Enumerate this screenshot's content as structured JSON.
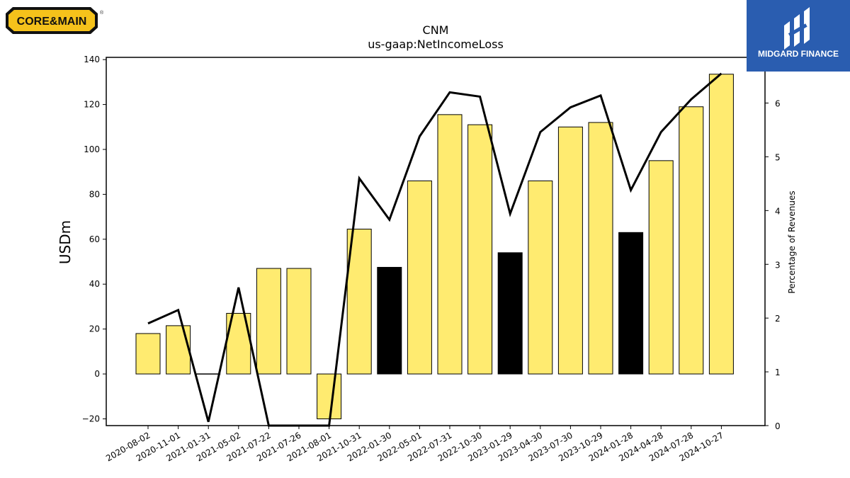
{
  "logos": {
    "left_text": "CORE&MAIN",
    "left_registered": "®",
    "right_text": "MIDGARD FINANCE"
  },
  "colors": {
    "bar_estimate": "#ffeb70",
    "bar_actual": "#000000",
    "line": "#000000",
    "logo_left_bg": "#f5c21b",
    "logo_right_bg": "#2a5db0"
  },
  "chart_data": {
    "type": "bar",
    "title": "CNM",
    "subtitle": "us-gaap:NetIncomeLoss",
    "ylabel": "USDm",
    "y2label": "Percentage of Revenues",
    "ylim": [
      -23,
      141
    ],
    "y2lim": [
      0,
      6.85
    ],
    "yticks": [
      -20,
      0,
      20,
      40,
      60,
      80,
      100,
      120,
      140
    ],
    "y2ticks": [
      0,
      1,
      2,
      3,
      4,
      5,
      6
    ],
    "grid": false,
    "categories": [
      "2020-08-02",
      "2020-11-01",
      "2021-01-31",
      "2021-05-02",
      "2021-07-22",
      "2021-07-26",
      "2021-08-01",
      "2021-10-31",
      "2022-01-30",
      "2022-05-01",
      "2022-07-31",
      "2022-10-30",
      "2023-01-29",
      "2023-04-30",
      "2023-07-30",
      "2023-10-29",
      "2024-01-28",
      "2024-04-28",
      "2024-07-28",
      "2024-10-27"
    ],
    "series": [
      {
        "kind": "bar",
        "axis": "left",
        "values": [
          18,
          21.5,
          0,
          27,
          47,
          47,
          -20,
          64.5,
          47.5,
          86,
          115.5,
          111,
          54,
          86,
          110,
          112,
          63,
          95,
          119,
          133.5
        ],
        "highlight": [
          false,
          false,
          false,
          false,
          false,
          false,
          false,
          false,
          true,
          false,
          false,
          false,
          true,
          false,
          false,
          false,
          true,
          false,
          false,
          false
        ]
      },
      {
        "kind": "line",
        "axis": "right",
        "values": [
          1.9,
          2.15,
          0.07,
          2.57,
          0.0,
          0.0,
          0.0,
          4.6,
          3.83,
          5.38,
          6.2,
          6.12,
          3.94,
          5.46,
          5.92,
          6.14,
          4.38,
          5.46,
          6.07,
          6.55
        ]
      }
    ]
  }
}
